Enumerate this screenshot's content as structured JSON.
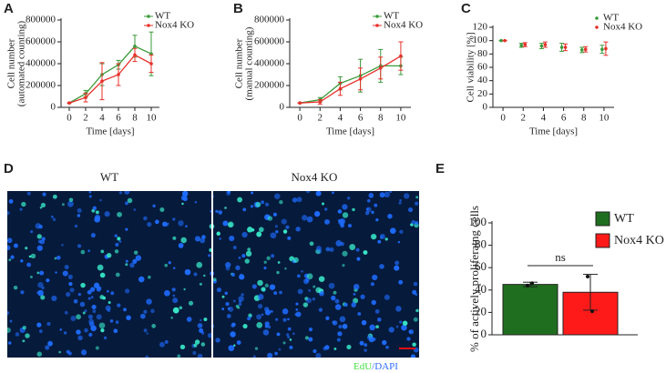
{
  "chart_data": [
    {
      "type": "line",
      "panel": "A",
      "ylabel": [
        "Cell number",
        "(automated counting)"
      ],
      "xlabel": "Time [days]",
      "x": [
        0,
        2,
        4,
        6,
        8,
        10
      ],
      "xlim": [
        -1,
        11
      ],
      "xticks": [
        0,
        2,
        4,
        6,
        8,
        10
      ],
      "ylim": [
        0,
        800000
      ],
      "yticks": [
        0,
        200000,
        400000,
        600000,
        800000
      ],
      "series": [
        {
          "name": "WT",
          "color": "#3a9a3a",
          "values": [
            40000,
            125000,
            300000,
            390000,
            560000,
            490000
          ],
          "errors": [
            0,
            30000,
            100000,
            40000,
            100000,
            200000
          ]
        },
        {
          "name": "Nox4 KO",
          "color": "#e8302a",
          "values": [
            40000,
            90000,
            240000,
            300000,
            480000,
            400000
          ],
          "errors": [
            0,
            40000,
            170000,
            100000,
            60000,
            80000
          ]
        }
      ]
    },
    {
      "type": "line",
      "panel": "B",
      "ylabel": [
        "Cell number",
        "(manual counting)"
      ],
      "xlabel": "Time [days]",
      "x": [
        0,
        2,
        4,
        6,
        8,
        10
      ],
      "xlim": [
        -1,
        11
      ],
      "xticks": [
        0,
        2,
        4,
        6,
        8,
        10
      ],
      "ylim": [
        0,
        800000
      ],
      "yticks": [
        0,
        200000,
        400000,
        600000,
        800000
      ],
      "series": [
        {
          "name": "WT",
          "color": "#3a9a3a",
          "values": [
            40000,
            70000,
            220000,
            290000,
            380000,
            380000
          ],
          "errors": [
            0,
            20000,
            60000,
            150000,
            150000,
            80000
          ]
        },
        {
          "name": "Nox4 KO",
          "color": "#e8302a",
          "values": [
            40000,
            50000,
            170000,
            260000,
            360000,
            470000
          ],
          "errors": [
            0,
            20000,
            60000,
            100000,
            100000,
            130000
          ]
        }
      ]
    },
    {
      "type": "scatter",
      "panel": "C",
      "ylabel": [
        "Cell viability [%]"
      ],
      "xlabel": "Time [days]",
      "x": [
        0,
        2,
        4,
        6,
        8,
        10
      ],
      "xlim": [
        -1,
        11
      ],
      "xticks": [
        0,
        2,
        4,
        6,
        8,
        10
      ],
      "ylim": [
        0,
        120
      ],
      "yticks": [
        0,
        20,
        40,
        60,
        80,
        100,
        120
      ],
      "series": [
        {
          "name": "WT",
          "color": "#3a9a3a",
          "values": [
            100,
            93,
            92,
            90,
            86,
            87
          ],
          "errors": [
            0,
            3,
            4,
            6,
            4,
            6
          ]
        },
        {
          "name": "Nox4 KO",
          "color": "#e8302a",
          "values": [
            100,
            94,
            94,
            90,
            87,
            88
          ],
          "errors": [
            0,
            3,
            4,
            5,
            4,
            10
          ]
        }
      ]
    },
    {
      "type": "bar",
      "panel": "E",
      "ylabel": [
        "% of actively proliferatng cells"
      ],
      "annotation": "ns",
      "ylim": [
        0,
        100
      ],
      "yticks": [
        0,
        20,
        40,
        60,
        80,
        100
      ],
      "series": [
        {
          "name": "WT",
          "color": "#1f6e1f",
          "values": [
            45
          ],
          "errors": [
            2
          ],
          "points": [
            44,
            46
          ]
        },
        {
          "name": "Nox4 KO",
          "color": "#ff1a1a",
          "values": [
            38
          ],
          "errors": [
            16
          ],
          "points": [
            52,
            21
          ]
        }
      ]
    }
  ],
  "image_panel": {
    "panel": "D",
    "labels": [
      "WT",
      "Nox4 KO"
    ],
    "caption": [
      "EdU",
      "/DAPI"
    ]
  }
}
